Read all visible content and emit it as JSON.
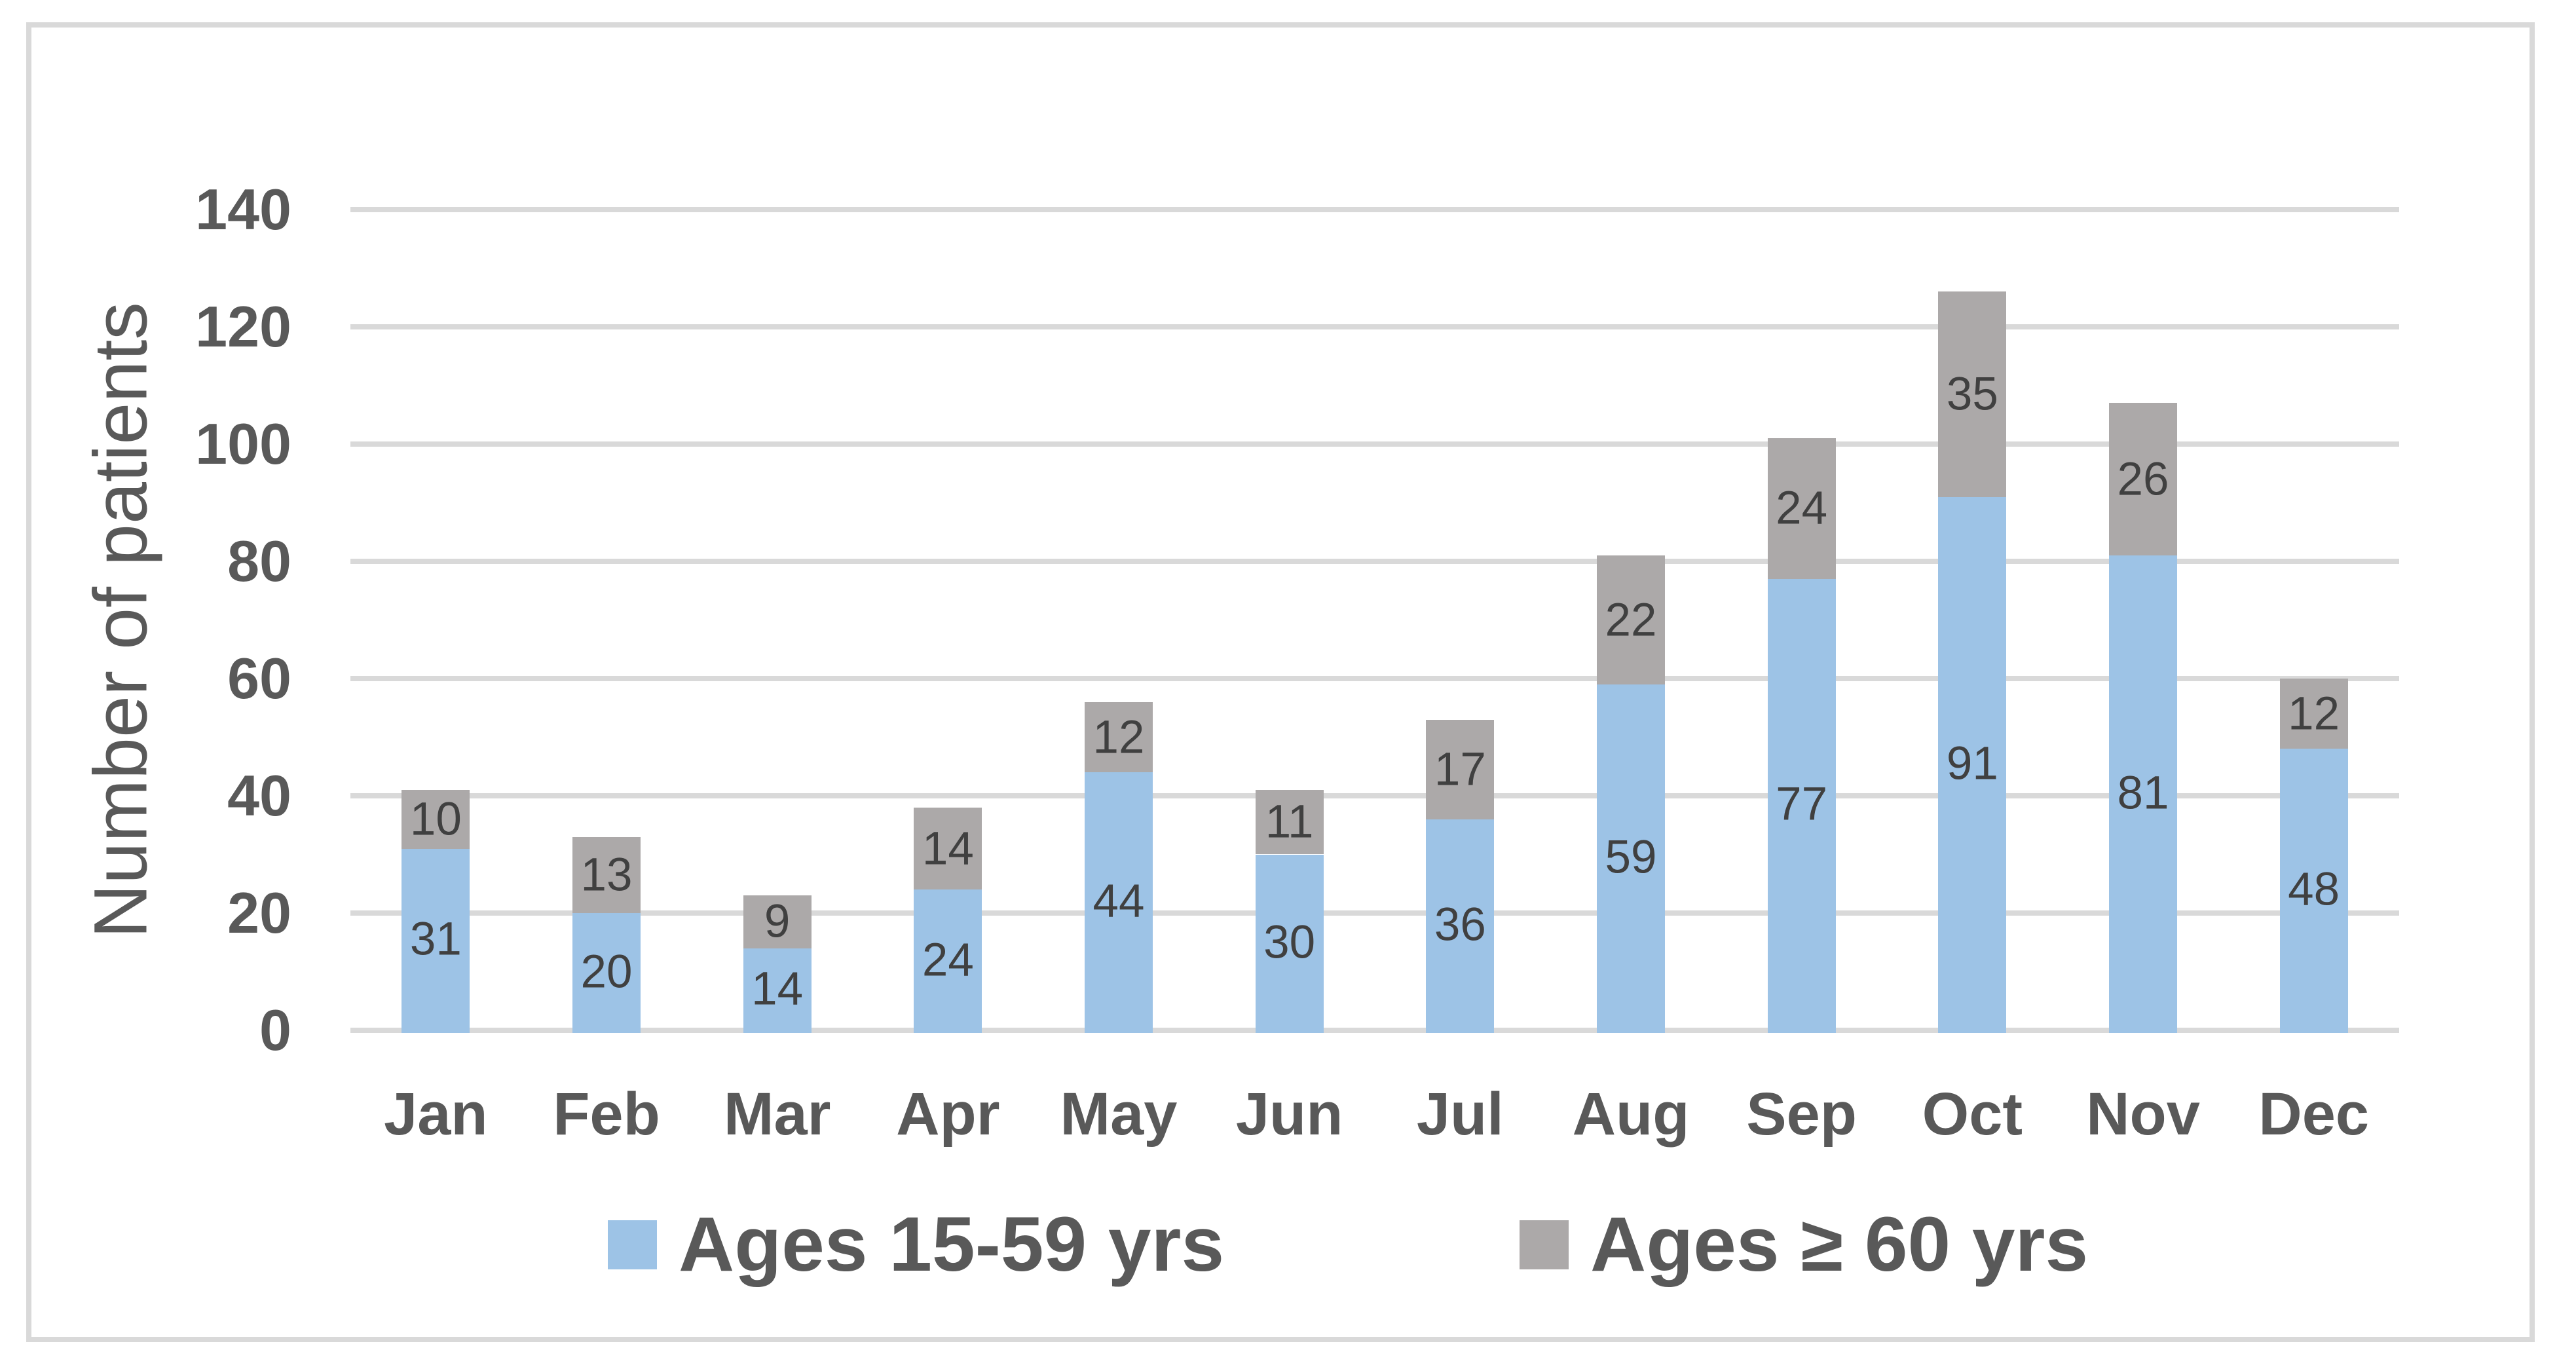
{
  "chart_data": {
    "type": "bar",
    "subtype": "stacked-column",
    "categories": [
      "Jan",
      "Feb",
      "Mar",
      "Apr",
      "May",
      "Jun",
      "Jul",
      "Aug",
      "Sep",
      "Oct",
      "Nov",
      "Dec"
    ],
    "series": [
      {
        "name": "Ages 15-59 yrs",
        "color": "#9DC3E6",
        "values": [
          31,
          20,
          14,
          24,
          44,
          30,
          36,
          59,
          77,
          91,
          81,
          48
        ]
      },
      {
        "name": "Ages ≥ 60 yrs",
        "color": "#ACA9A9",
        "values": [
          10,
          13,
          9,
          14,
          12,
          11,
          17,
          22,
          24,
          35,
          26,
          12
        ]
      }
    ],
    "title": "",
    "xlabel": "",
    "ylabel": "Number of patients",
    "ylim": [
      0,
      140
    ],
    "yticks": [
      0,
      20,
      40,
      60,
      80,
      100,
      120,
      140
    ],
    "grid": true,
    "data_labels": "centered-in-segment",
    "legend_position": "bottom",
    "colors": {
      "gridline": "#D9D9D9",
      "chart_border": "#D9D9D9",
      "axis_text": "#595959",
      "data_label_text": "#404040",
      "background": "#FFFFFF"
    }
  }
}
